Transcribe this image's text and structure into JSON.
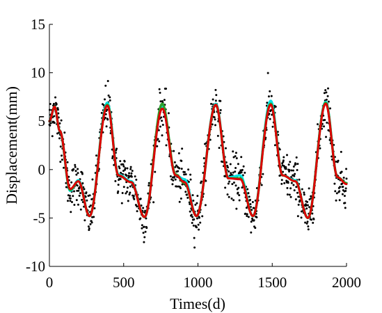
{
  "chart_data": {
    "type": "scatter",
    "title": "",
    "xlabel": "Times(d)",
    "ylabel": "Displacement(mm)",
    "xlim": [
      0,
      2000
    ],
    "ylim": [
      -10,
      15
    ],
    "xticks": [
      "0",
      "500",
      "1000",
      "1500",
      "2000"
    ],
    "yticks": [
      "15",
      "10",
      "5",
      "0",
      "-5",
      "-10"
    ],
    "grid": false,
    "legend": "none",
    "observations": {
      "color": "#000000",
      "x_range": [
        0,
        2000
      ],
      "count": 1000,
      "noise_sd_mm": 1.2
    },
    "series": [
      {
        "color": "#00e5e5",
        "x": [
          0,
          35,
          70,
          140,
          195,
          270,
          390,
          465,
          550,
          640,
          760,
          850,
          910,
          990,
          1120,
          1205,
          1285,
          1370,
          1490,
          1570,
          1655,
          1740,
          1860,
          1940,
          2000
        ],
        "y": [
          5.0,
          6.5,
          4.0,
          -2.2,
          -1.1,
          -4.8,
          6.9,
          -0.5,
          -1.2,
          -4.9,
          6.5,
          -0.6,
          -1.0,
          -4.8,
          6.8,
          -0.8,
          -0.6,
          -4.8,
          7.1,
          -0.6,
          -1.1,
          -5.0,
          7.0,
          -0.8,
          -1.4
        ]
      },
      {
        "color": "#2ca02c",
        "x": [
          0,
          35,
          70,
          140,
          195,
          270,
          390,
          465,
          550,
          640,
          760,
          850,
          910,
          990,
          1120,
          1205,
          1285,
          1370,
          1490,
          1570,
          1655,
          1740,
          1860,
          1940,
          2000
        ],
        "y": [
          5.0,
          6.5,
          4.0,
          -2.1,
          -1.2,
          -4.8,
          6.7,
          -0.6,
          -1.3,
          -4.9,
          6.8,
          -0.5,
          -1.4,
          -4.8,
          6.7,
          -0.9,
          -0.9,
          -4.8,
          6.8,
          -0.6,
          -1.2,
          -5.0,
          6.9,
          -0.8,
          -1.4
        ]
      },
      {
        "color": "#dd0000",
        "x": [
          0,
          35,
          70,
          140,
          195,
          270,
          390,
          465,
          550,
          640,
          760,
          850,
          910,
          990,
          1120,
          1205,
          1285,
          1370,
          1490,
          1570,
          1655,
          1740,
          1860,
          1940,
          2000
        ],
        "y": [
          5.0,
          6.5,
          4.0,
          -2.0,
          -1.2,
          -4.8,
          6.6,
          -0.6,
          -1.3,
          -4.9,
          6.3,
          -0.6,
          -1.3,
          -4.8,
          6.7,
          -0.9,
          -1.0,
          -4.8,
          6.7,
          -0.6,
          -1.2,
          -5.0,
          6.8,
          -0.8,
          -1.5
        ]
      }
    ]
  }
}
